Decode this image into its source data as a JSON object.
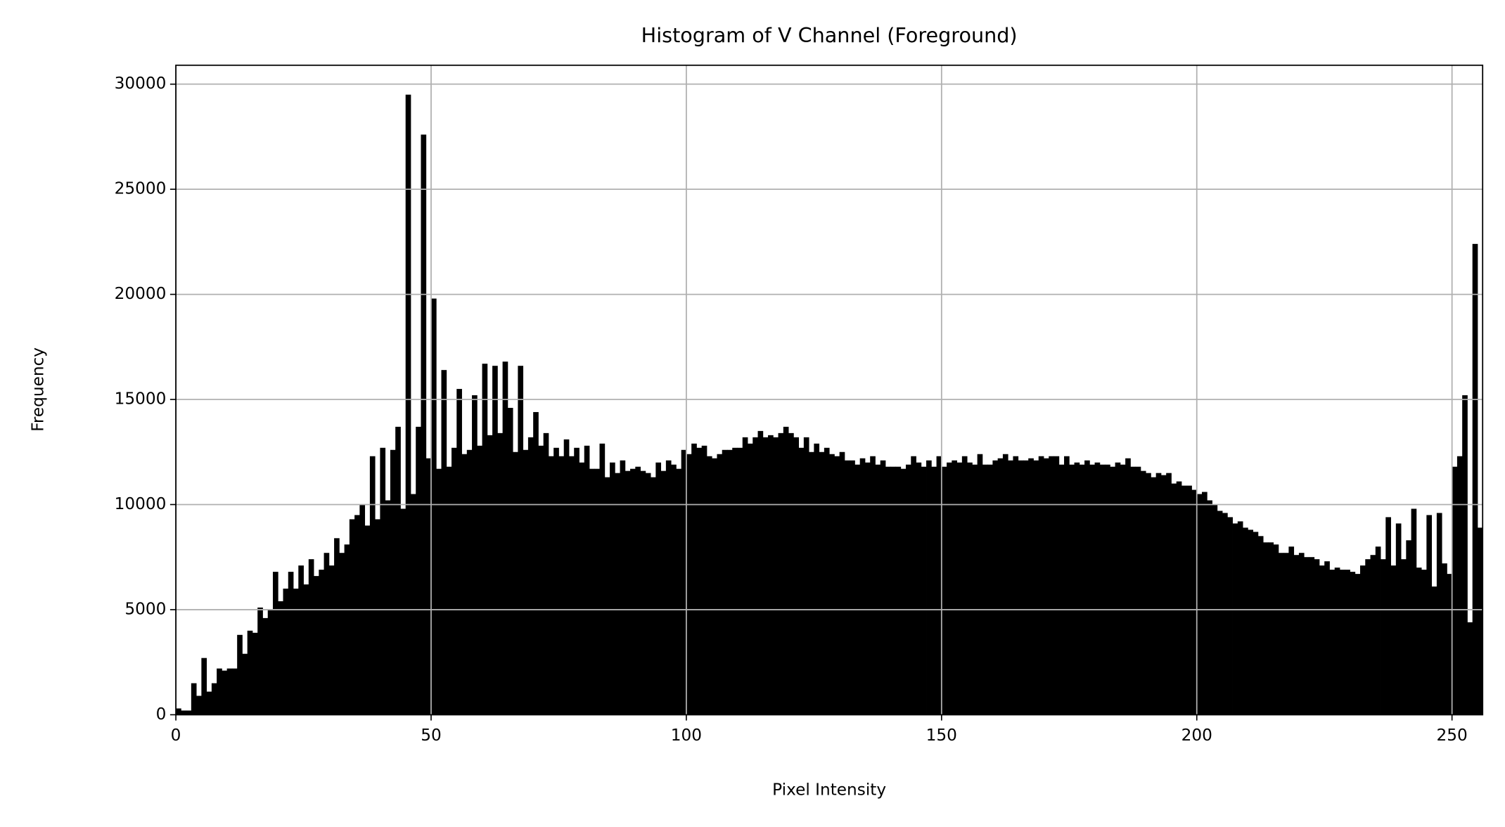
{
  "chart_data": {
    "type": "histogram",
    "title": "Histogram of V Channel (Foreground)",
    "x_label": "Pixel Intensity",
    "y_label": "Frequency",
    "color": "#000000",
    "grid": true,
    "xlim": [
      0,
      256
    ],
    "ylim": [
      0,
      30900
    ],
    "xticks": [
      0,
      50,
      100,
      150,
      200,
      250
    ],
    "yticks": [
      0,
      5000,
      10000,
      15000,
      20000,
      25000,
      30000
    ],
    "bins": [
      0,
      1,
      2,
      3,
      4,
      5,
      6,
      7,
      8,
      9,
      10,
      11,
      12,
      13,
      14,
      15,
      16,
      17,
      18,
      19,
      20,
      21,
      22,
      23,
      24,
      25,
      26,
      27,
      28,
      29,
      30,
      31,
      32,
      33,
      34,
      35,
      36,
      37,
      38,
      39,
      40,
      41,
      42,
      43,
      44,
      45,
      46,
      47,
      48,
      49,
      50,
      51,
      52,
      53,
      54,
      55,
      56,
      57,
      58,
      59,
      60,
      61,
      62,
      63,
      64,
      65,
      66,
      67,
      68,
      69,
      70,
      71,
      72,
      73,
      74,
      75,
      76,
      77,
      78,
      79,
      80,
      81,
      82,
      83,
      84,
      85,
      86,
      87,
      88,
      89,
      90,
      91,
      92,
      93,
      94,
      95,
      96,
      97,
      98,
      99,
      100,
      101,
      102,
      103,
      104,
      105,
      106,
      107,
      108,
      109,
      110,
      111,
      112,
      113,
      114,
      115,
      116,
      117,
      118,
      119,
      120,
      121,
      122,
      123,
      124,
      125,
      126,
      127,
      128,
      129,
      130,
      131,
      132,
      133,
      134,
      135,
      136,
      137,
      138,
      139,
      140,
      141,
      142,
      143,
      144,
      145,
      146,
      147,
      148,
      149,
      150,
      151,
      152,
      153,
      154,
      155,
      156,
      157,
      158,
      159,
      160,
      161,
      162,
      163,
      164,
      165,
      166,
      167,
      168,
      169,
      170,
      171,
      172,
      173,
      174,
      175,
      176,
      177,
      178,
      179,
      180,
      181,
      182,
      183,
      184,
      185,
      186,
      187,
      188,
      189,
      190,
      191,
      192,
      193,
      194,
      195,
      196,
      197,
      198,
      199,
      200,
      201,
      202,
      203,
      204,
      205,
      206,
      207,
      208,
      209,
      210,
      211,
      212,
      213,
      214,
      215,
      216,
      217,
      218,
      219,
      220,
      221,
      222,
      223,
      224,
      225,
      226,
      227,
      228,
      229,
      230,
      231,
      232,
      233,
      234,
      235,
      236,
      237,
      238,
      239,
      240,
      241,
      242,
      243,
      244,
      245,
      246,
      247,
      248,
      249,
      250,
      251,
      252,
      253,
      254,
      255,
      256
    ],
    "values": [
      300,
      200,
      200,
      1500,
      900,
      2700,
      1100,
      1500,
      2200,
      2100,
      2200,
      2200,
      3800,
      2900,
      4000,
      3900,
      5100,
      4600,
      5000,
      6800,
      5400,
      6000,
      6800,
      6000,
      7100,
      6200,
      7400,
      6600,
      6900,
      7700,
      7100,
      8400,
      7700,
      8100,
      9300,
      9500,
      10000,
      9000,
      12300,
      9300,
      12700,
      10200,
      12600,
      13700,
      9800,
      29500,
      10500,
      13700,
      27600,
      12200,
      19800,
      11700,
      16400,
      11800,
      12700,
      15500,
      12400,
      12600,
      15200,
      12800,
      16700,
      13300,
      16600,
      13400,
      16800,
      14600,
      12500,
      16600,
      12600,
      13200,
      14400,
      12800,
      13400,
      12300,
      12700,
      12300,
      13100,
      12300,
      12700,
      12000,
      12800,
      11700,
      11700,
      12900,
      11300,
      12000,
      11500,
      12100,
      11600,
      11700,
      11800,
      11600,
      11500,
      11300,
      12000,
      11600,
      12100,
      11900,
      11700,
      12600,
      12400,
      12900,
      12700,
      12800,
      12300,
      12200,
      12400,
      12600,
      12600,
      12700,
      12700,
      13200,
      12900,
      13200,
      13500,
      13200,
      13300,
      13200,
      13400,
      13700,
      13400,
      13200,
      12700,
      13200,
      12500,
      12900,
      12500,
      12700,
      12400,
      12300,
      12500,
      12100,
      12100,
      11900,
      12200,
      12000,
      12300,
      11900,
      12100,
      11800,
      11800,
      11800,
      11700,
      11900,
      12300,
      12000,
      11800,
      12100,
      11800,
      12300,
      11800,
      12000,
      12100,
      12000,
      12300,
      12000,
      11900,
      12400,
      11900,
      11900,
      12100,
      12200,
      12400,
      12100,
      12300,
      12100,
      12100,
      12200,
      12100,
      12300,
      12200,
      12300,
      12300,
      11900,
      12300,
      11900,
      12000,
      11900,
      12100,
      11900,
      12000,
      11900,
      11900,
      11800,
      12000,
      11900,
      12200,
      11800,
      11800,
      11600,
      11500,
      11300,
      11500,
      11400,
      11500,
      11000,
      11100,
      10900,
      10900,
      10700,
      10500,
      10600,
      10200,
      10000,
      9700,
      9600,
      9400,
      9100,
      9200,
      8900,
      8800,
      8700,
      8500,
      8200,
      8200,
      8100,
      7700,
      7700,
      8000,
      7600,
      7700,
      7500,
      7500,
      7400,
      7100,
      7300,
      6900,
      7000,
      6900,
      6900,
      6800,
      6700,
      7100,
      7400,
      7600,
      8000,
      7400,
      9400,
      7100,
      9100,
      7400,
      8300,
      9800,
      7000,
      6900,
      9500,
      6100,
      9600,
      7200,
      6700,
      11800,
      12300,
      15200,
      4400,
      22400,
      8900
    ]
  }
}
